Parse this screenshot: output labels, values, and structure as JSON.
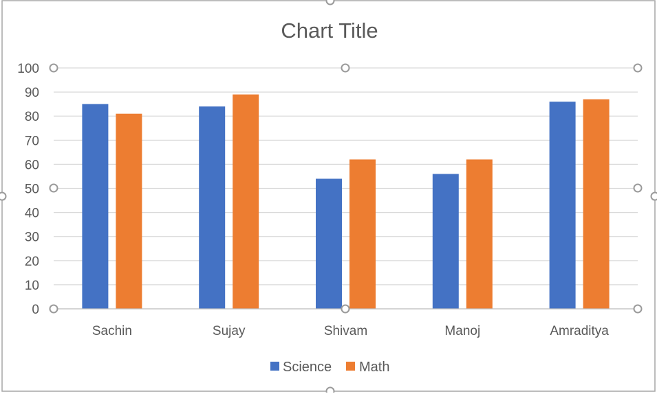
{
  "chart_data": {
    "type": "bar",
    "title": "Chart Title",
    "categories": [
      "Sachin",
      "Sujay",
      "Shivam",
      "Manoj",
      "Amraditya"
    ],
    "series": [
      {
        "name": "Science",
        "color": "#4472C4",
        "values": [
          85,
          84,
          54,
          56,
          86
        ]
      },
      {
        "name": "Math",
        "color": "#ED7D31",
        "values": [
          81,
          89,
          62,
          62,
          87
        ]
      }
    ],
    "ylim": [
      0,
      100
    ],
    "yticks": [
      0,
      10,
      20,
      30,
      40,
      50,
      60,
      70,
      80,
      90,
      100
    ],
    "grid": true,
    "legend_position": "bottom"
  }
}
